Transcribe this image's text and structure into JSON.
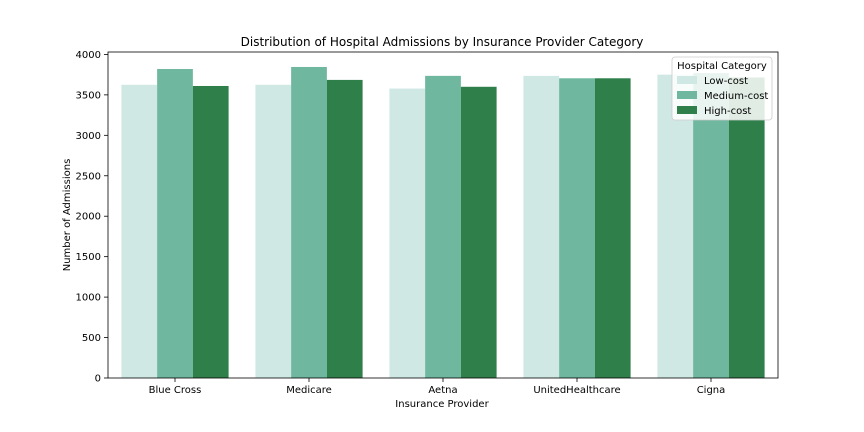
{
  "chart_data": {
    "type": "bar",
    "title": "Distribution of Hospital Admissions by Insurance Provider Category",
    "xlabel": "Insurance Provider",
    "ylabel": "Number of Admissions",
    "categories": [
      "Blue Cross",
      "Medicare",
      "Aetna",
      "UnitedHealthcare",
      "Cigna"
    ],
    "ylim": [
      0,
      4030
    ],
    "yticks": [
      0,
      500,
      1000,
      1500,
      2000,
      2500,
      3000,
      3500,
      4000
    ],
    "grid": false,
    "legend": {
      "title": "Hospital Category",
      "placement": "top-right"
    },
    "series": [
      {
        "name": "Low-cost",
        "color": "#cfe8e4",
        "values": [
          3625,
          3625,
          3578,
          3735,
          3750
        ]
      },
      {
        "name": "Medium-cost",
        "color": "#6fb79e",
        "values": [
          3820,
          3845,
          3735,
          3705,
          3770
        ]
      },
      {
        "name": "High-cost",
        "color": "#2e7f4a",
        "values": [
          3610,
          3685,
          3600,
          3705,
          3715
        ]
      }
    ]
  }
}
